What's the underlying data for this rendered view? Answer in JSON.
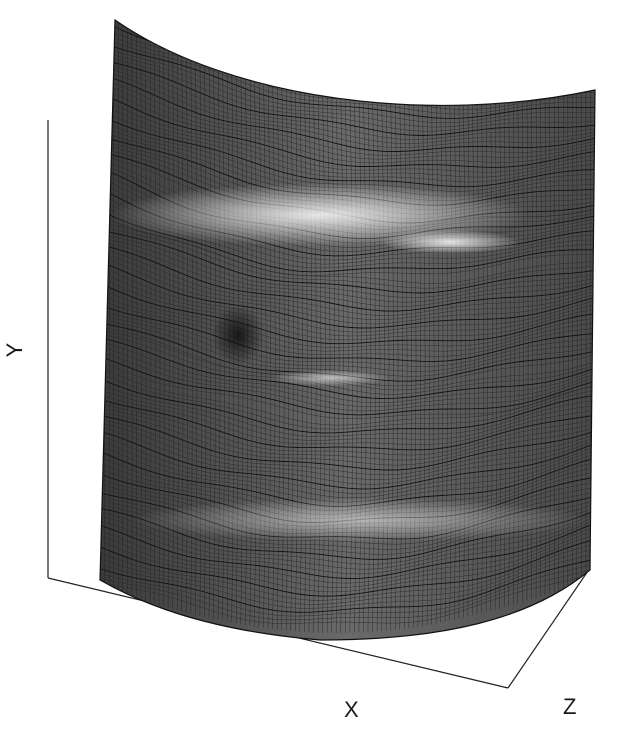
{
  "figure": {
    "type": "3d-mesh-surface",
    "axes": {
      "x_label": "X",
      "y_label": "Y",
      "z_label": "Z"
    },
    "surface": {
      "style": "wireframe-mesh",
      "colormap": "grayscale",
      "features": [
        "horizontal-wrinkles",
        "upper-bulge",
        "central-depression",
        "lower-bulge"
      ]
    }
  }
}
